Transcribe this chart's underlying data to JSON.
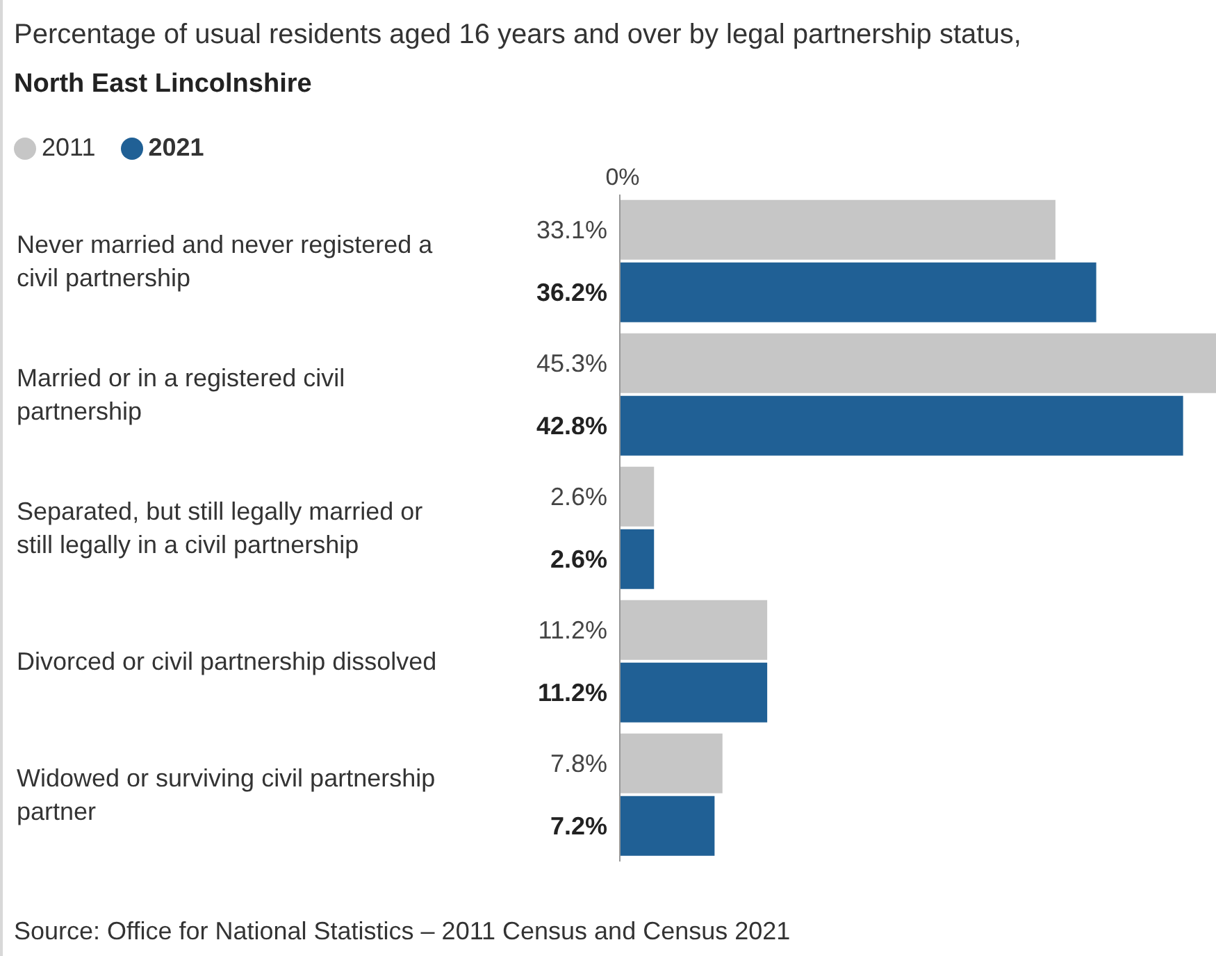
{
  "chart_data": {
    "type": "bar",
    "orientation": "horizontal",
    "title": "Percentage of usual residents aged 16 years and over by legal partnership status,",
    "subtitle": "North East Lincolnshire",
    "categories": [
      "Never married and never registered a civil partnership",
      "Married or in a registered civil partnership",
      "Separated, but still legally married or still legally in a civil partnership",
      "Divorced or civil partnership dissolved",
      "Widowed or surviving civil partnership partner"
    ],
    "series": [
      {
        "name": "2011",
        "color": "#c6c6c6",
        "values": [
          33.1,
          45.3,
          2.6,
          11.2,
          7.8
        ],
        "value_labels": [
          "33.1%",
          "45.3%",
          "2.6%",
          "11.2%",
          "7.8%"
        ]
      },
      {
        "name": "2021",
        "color": "#206095",
        "values": [
          36.2,
          42.8,
          2.6,
          11.2,
          7.2
        ],
        "value_labels": [
          "36.2%",
          "42.8%",
          "2.6%",
          "11.2%",
          "7.2%"
        ]
      }
    ],
    "grid": false,
    "legend": "top left",
    "annotations": [
      "0%",
      "Source: Office for National Statistics – 2011 Census and Census 2021"
    ]
  }
}
